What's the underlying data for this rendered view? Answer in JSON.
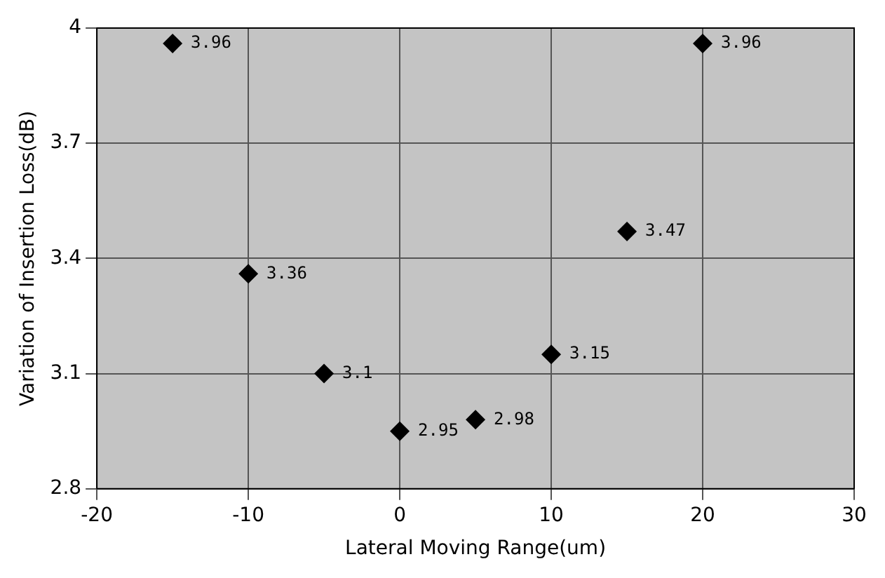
{
  "chart_data": {
    "type": "scatter",
    "xlabel": "Lateral Moving Range(um)",
    "ylabel": "Variation of Insertion Loss(dB)",
    "x": [
      -15,
      -10,
      -5,
      0,
      5,
      10,
      15,
      20
    ],
    "values": [
      3.96,
      3.36,
      3.1,
      2.95,
      2.98,
      3.15,
      3.47,
      3.96
    ],
    "color": "#000000",
    "marker": "diamond",
    "data_labels": true,
    "grid": true,
    "legend": false,
    "xlim": [
      -20,
      30
    ],
    "xticks": [
      -20,
      -10,
      0,
      10,
      20,
      30
    ],
    "ylim": [
      2.8,
      4
    ],
    "yticks": [
      2.8,
      3.1,
      3.4,
      3.7,
      4
    ]
  }
}
